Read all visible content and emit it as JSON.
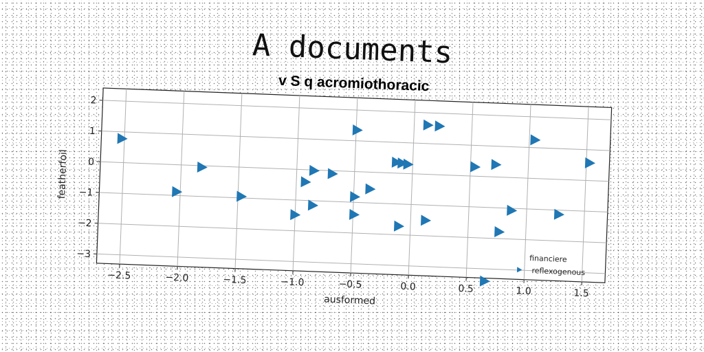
{
  "colors": {
    "marker": "#1f77b4"
  },
  "chart_data": {
    "type": "scatter",
    "title": "A documents",
    "subtitle": "v S q acromiothoracic",
    "xlabel": "ausformed",
    "ylabel": "featherfoil",
    "xlim": [
      -2.7,
      1.7
    ],
    "ylim": [
      -3.3,
      2.4
    ],
    "xticks": [
      -2.5,
      -2.0,
      -1.5,
      -1.0,
      -0.5,
      0.0,
      0.5,
      1.0,
      1.5
    ],
    "xtick_labels": [
      "−2.5",
      "−2.0",
      "−1.5",
      "−1.0",
      "−0.5",
      "0.0",
      "0.5",
      "1.0",
      "1.5"
    ],
    "yticks": [
      -3,
      -2,
      -1,
      0,
      1,
      2
    ],
    "ytick_labels": [
      "−3",
      "−2",
      "−1",
      "0",
      "1",
      "2"
    ],
    "grid": true,
    "legend": {
      "placement": "bottom-right",
      "entries": [
        "financiere",
        "reflexogenous"
      ]
    },
    "series": [
      {
        "marker": "triangle-right",
        "points": [
          [
            -2.52,
            0.78
          ],
          [
            -1.82,
            -0.05
          ],
          [
            -2.03,
            -0.88
          ],
          [
            -1.47,
            -0.95
          ],
          [
            -0.85,
            -0.02
          ],
          [
            -0.69,
            -0.1
          ],
          [
            -0.92,
            -0.4
          ],
          [
            -0.85,
            -1.15
          ],
          [
            -1.0,
            -1.48
          ],
          [
            -0.49,
            1.35
          ],
          [
            -0.49,
            -0.82
          ],
          [
            -0.36,
            -0.55
          ],
          [
            -0.49,
            -1.4
          ],
          [
            -0.14,
            0.35
          ],
          [
            -0.09,
            0.33
          ],
          [
            -0.04,
            0.3
          ],
          [
            -0.1,
            -1.72
          ],
          [
            0.13,
            -1.5
          ],
          [
            0.12,
            1.6
          ],
          [
            0.22,
            1.58
          ],
          [
            0.54,
            0.3
          ],
          [
            0.72,
            0.4
          ],
          [
            1.05,
            1.25
          ],
          [
            1.53,
            0.57
          ],
          [
            0.87,
            -1.07
          ],
          [
            0.77,
            -1.78
          ],
          [
            1.28,
            -1.14
          ],
          [
            0.66,
            -3.4
          ]
        ]
      }
    ]
  }
}
